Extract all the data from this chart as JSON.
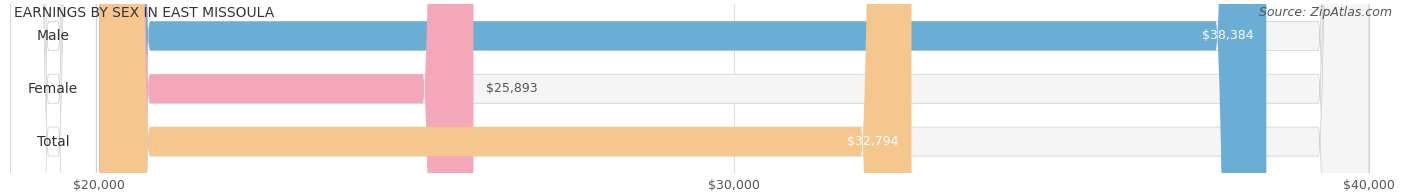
{
  "title": "EARNINGS BY SEX IN EAST MISSOULA",
  "source": "Source: ZipAtlas.com",
  "categories": [
    "Male",
    "Female",
    "Total"
  ],
  "values": [
    38384,
    25893,
    32794
  ],
  "x_min": 20000,
  "x_max": 40000,
  "bar_colors": [
    "#6aaed6",
    "#f4a7b9",
    "#f5c78e"
  ],
  "tick_labels": [
    "$20,000",
    "$30,000",
    "$40,000"
  ],
  "tick_values": [
    20000,
    30000,
    40000
  ],
  "bar_height": 0.55,
  "title_fontsize": 10,
  "source_fontsize": 9,
  "tick_fontsize": 9,
  "label_fontsize": 10,
  "value_fontsize": 9
}
